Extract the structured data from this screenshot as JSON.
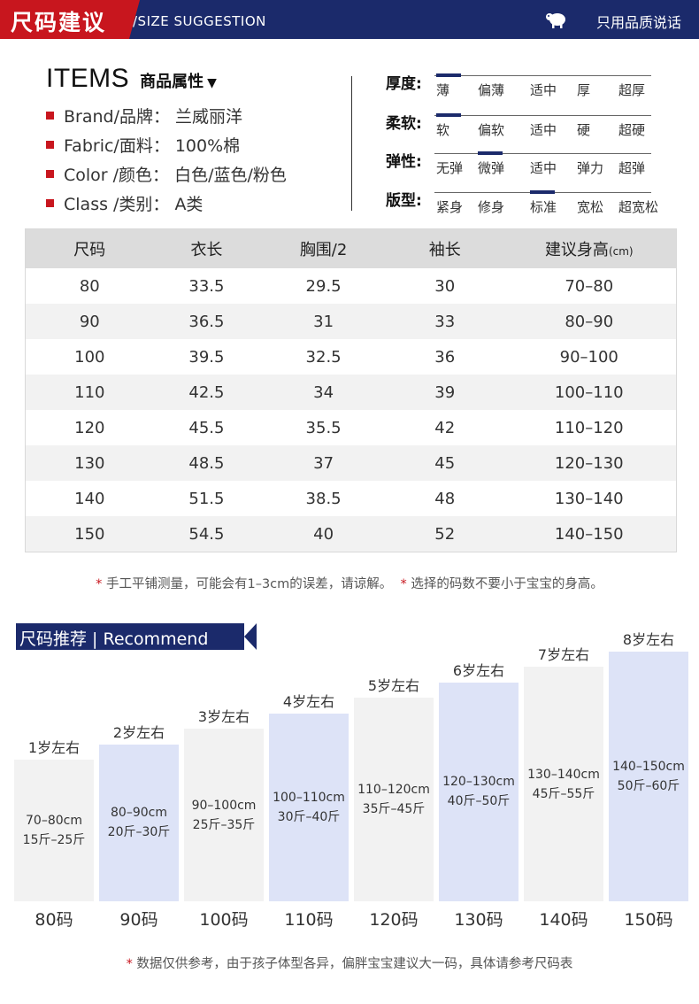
{
  "header": {
    "title_cn": "尺码建议",
    "title_en": "/SIZE SUGGESTION",
    "brand_slogan": "只用品质说话",
    "colors": {
      "navy": "#1b2a6b",
      "red": "#c8161e"
    }
  },
  "items": {
    "title": "ITEMS",
    "subtitle": "商品属性",
    "subtitle_icon": "triangle-down-icon",
    "attributes": [
      {
        "label": "Brand/品牌：",
        "value": "兰威丽洋"
      },
      {
        "label": "Fabric/面料：",
        "value": "100%棉"
      },
      {
        "label": "Color /颜色：",
        "value": "白色/蓝色/粉色"
      },
      {
        "label": "Class /类别：",
        "value": "A类"
      }
    ]
  },
  "scales": [
    {
      "label": "厚度:",
      "options": [
        "薄",
        "偏薄",
        "适中",
        "厚",
        "超厚"
      ],
      "selected": 0
    },
    {
      "label": "柔软:",
      "options": [
        "软",
        "偏软",
        "适中",
        "硬",
        "超硬"
      ],
      "selected": 0
    },
    {
      "label": "弹性:",
      "options": [
        "无弹",
        "微弹",
        "适中",
        "弹力",
        "超弹"
      ],
      "selected": 1
    },
    {
      "label": "版型:",
      "options": [
        "紧身",
        "修身",
        "标准",
        "宽松",
        "超宽松"
      ],
      "selected": 2
    }
  ],
  "size_table": {
    "headers": [
      "尺码",
      "衣长",
      "胸围/2",
      "袖长",
      "建议身高"
    ],
    "height_unit": "(cm)",
    "rows": [
      [
        "80",
        "33.5",
        "29.5",
        "30",
        "70–80"
      ],
      [
        "90",
        "36.5",
        "31",
        "33",
        "80–90"
      ],
      [
        "100",
        "39.5",
        "32.5",
        "36",
        "90–100"
      ],
      [
        "110",
        "42.5",
        "34",
        "39",
        "100–110"
      ],
      [
        "120",
        "45.5",
        "35.5",
        "42",
        "110–120"
      ],
      [
        "130",
        "48.5",
        "37",
        "45",
        "120–130"
      ],
      [
        "140",
        "51.5",
        "38.5",
        "48",
        "130–140"
      ],
      [
        "150",
        "54.5",
        "40",
        "52",
        "140–150"
      ]
    ]
  },
  "note1": {
    "asterisk": "*",
    "part1": " 手工平铺测量，可能会有1–3cm的误差，请谅解。",
    "part2": " 选择的码数不要小于宝宝的身高。"
  },
  "recommend": {
    "title": "尺码推荐 | Recommend",
    "columns": [
      {
        "age": "1岁左右",
        "height": "70–80cm",
        "weight": "15斤–25斤",
        "size": "80码",
        "level": 1,
        "color": "#f2f2f2"
      },
      {
        "age": "2岁左右",
        "height": "80–90cm",
        "weight": "20斤–30斤",
        "size": "90码",
        "level": 2,
        "color": "#dde3f7"
      },
      {
        "age": "3岁左右",
        "height": "90–100cm",
        "weight": "25斤–35斤",
        "size": "100码",
        "level": 3,
        "color": "#f2f2f2"
      },
      {
        "age": "4岁左右",
        "height": "100–110cm",
        "weight": "30斤–40斤",
        "size": "110码",
        "level": 4,
        "color": "#dde3f7"
      },
      {
        "age": "5岁左右",
        "height": "110–120cm",
        "weight": "35斤–45斤",
        "size": "120码",
        "level": 5,
        "color": "#f2f2f2"
      },
      {
        "age": "6岁左右",
        "height": "120–130cm",
        "weight": "40斤–50斤",
        "size": "130码",
        "level": 6,
        "color": "#dde3f7"
      },
      {
        "age": "7岁左右",
        "height": "130–140cm",
        "weight": "45斤–55斤",
        "size": "140码",
        "level": 7,
        "color": "#f2f2f2"
      },
      {
        "age": "8岁左右",
        "height": "140–150cm",
        "weight": "50斤–60斤",
        "size": "150码",
        "level": 8,
        "color": "#dde3f7"
      }
    ]
  },
  "note2": {
    "asterisk": "*",
    "text": " 数据仅供参考，由于孩子体型各异，偏胖宝宝建议大一码，具体请参考尺码表"
  }
}
